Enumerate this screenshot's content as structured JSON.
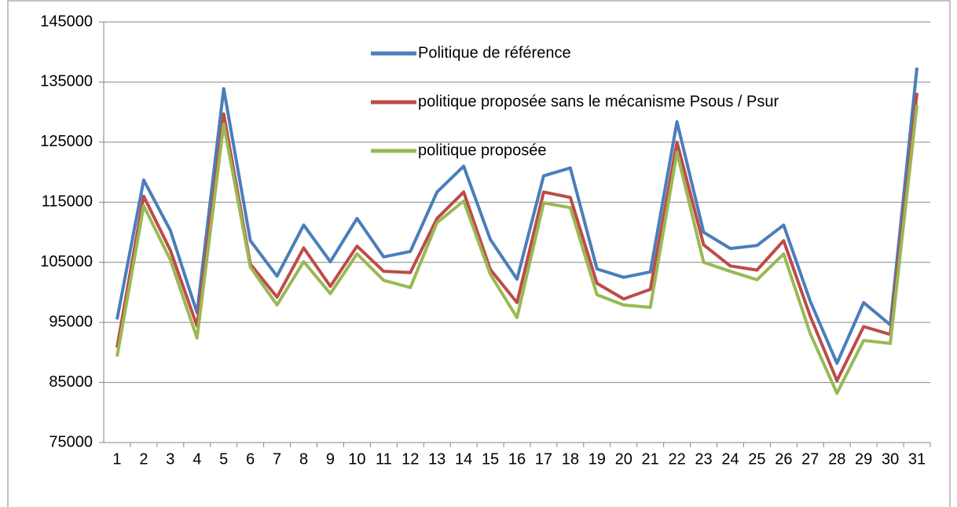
{
  "chart_data": {
    "type": "line",
    "categories": [
      "1",
      "2",
      "3",
      "4",
      "5",
      "6",
      "7",
      "8",
      "9",
      "10",
      "11",
      "12",
      "13",
      "14",
      "15",
      "16",
      "17",
      "18",
      "19",
      "20",
      "21",
      "22",
      "23",
      "24",
      "25",
      "26",
      "27",
      "28",
      "29",
      "30",
      "31"
    ],
    "series": [
      {
        "name": "Politique de référence",
        "color": "#4a7ebb",
        "values": [
          95500,
          118700,
          110300,
          96600,
          133900,
          108600,
          102700,
          111200,
          105100,
          112300,
          105900,
          106800,
          116700,
          121000,
          108800,
          102200,
          119400,
          120700,
          103900,
          102500,
          103400,
          128400,
          110000,
          107300,
          107800,
          111200,
          98500,
          88200,
          98300,
          94600,
          137400
        ]
      },
      {
        "name": "politique proposée sans le mécanisme Psous / Psur",
        "color": "#be4b48",
        "values": [
          90800,
          116000,
          107000,
          94400,
          129700,
          104700,
          99200,
          107400,
          101000,
          107700,
          103500,
          103300,
          112300,
          116700,
          103800,
          98300,
          116700,
          115800,
          101500,
          98900,
          100500,
          125000,
          107900,
          104400,
          103700,
          108600,
          96000,
          85300,
          94300,
          93000,
          133200
        ]
      },
      {
        "name": "politique proposée",
        "color": "#98b954",
        "values": [
          89300,
          114400,
          105400,
          92400,
          128000,
          104200,
          97900,
          105100,
          99800,
          106400,
          102000,
          100800,
          111600,
          115200,
          103000,
          95800,
          114900,
          114100,
          99600,
          97900,
          97500,
          123300,
          105000,
          103500,
          102100,
          106400,
          93100,
          83200,
          92000,
          91500,
          131200
        ]
      }
    ],
    "ylim": [
      75000,
      145000
    ],
    "yticks": [
      75000,
      85000,
      95000,
      105000,
      115000,
      125000,
      135000,
      145000
    ],
    "grid": true
  }
}
